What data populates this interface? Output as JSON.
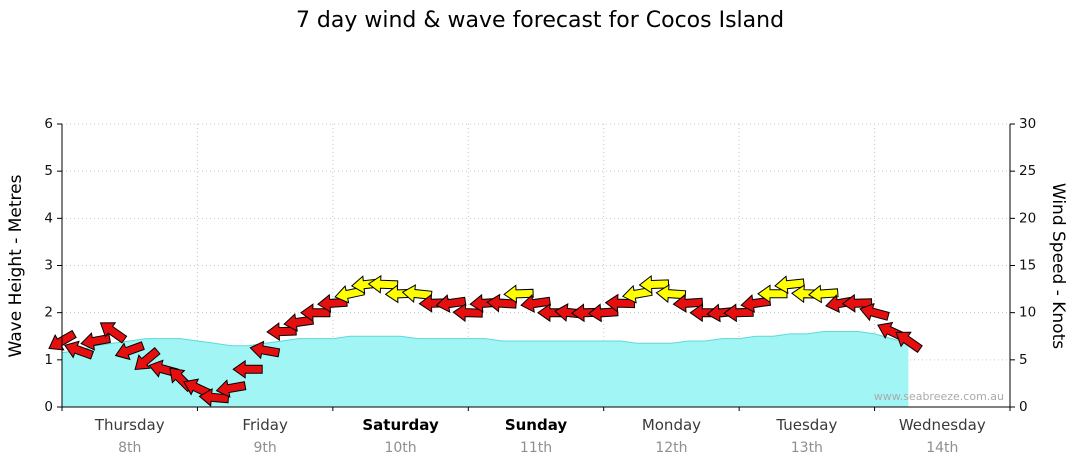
{
  "title": "7 day wind & wave forecast for Cocos Island",
  "watermark": "www.seabreeze.com.au",
  "left_axis": {
    "label": "Wave Height - Metres",
    "ticks": [
      0,
      1,
      2,
      3,
      4,
      5,
      6
    ],
    "max": 6
  },
  "right_axis": {
    "label": "Wind Speed - Knots",
    "ticks": [
      0,
      5,
      10,
      15,
      20,
      25,
      30
    ],
    "max": 30
  },
  "chart_data": {
    "type": "area",
    "subtype": "wave-height-area-with-wind-arrows",
    "total_days": 7,
    "step_hours": 3,
    "categories": [
      {
        "name": "Thursday",
        "date": "8th",
        "bold": false
      },
      {
        "name": "Friday",
        "date": "9th",
        "bold": false
      },
      {
        "name": "Saturday",
        "date": "10th",
        "bold": true
      },
      {
        "name": "Sunday",
        "date": "11th",
        "bold": true
      },
      {
        "name": "Monday",
        "date": "12th",
        "bold": false
      },
      {
        "name": "Tuesday",
        "date": "13th",
        "bold": false
      },
      {
        "name": "Wednesday",
        "date": "14th",
        "bold": false
      }
    ],
    "wave_height_m": [
      1.15,
      1.2,
      1.3,
      1.35,
      1.4,
      1.45,
      1.45,
      1.45,
      1.4,
      1.35,
      1.3,
      1.3,
      1.35,
      1.4,
      1.45,
      1.45,
      1.45,
      1.5,
      1.5,
      1.5,
      1.5,
      1.45,
      1.45,
      1.45,
      1.45,
      1.45,
      1.4,
      1.4,
      1.4,
      1.4,
      1.4,
      1.4,
      1.4,
      1.4,
      1.35,
      1.35,
      1.35,
      1.4,
      1.4,
      1.45,
      1.45,
      1.5,
      1.5,
      1.55,
      1.55,
      1.6,
      1.6,
      1.6,
      1.55,
      1.45,
      1.35
    ],
    "wind": {
      "knots": [
        7,
        6,
        7,
        8,
        6,
        5,
        4,
        3,
        2,
        1,
        2,
        4,
        6,
        8,
        9,
        10,
        11,
        12,
        13,
        13,
        12,
        12,
        11,
        11,
        10,
        11,
        11,
        12,
        11,
        10,
        10,
        10,
        10,
        11,
        12,
        13,
        12,
        11,
        10,
        10,
        10,
        11,
        12,
        13,
        12,
        12,
        11,
        11,
        10,
        8,
        7
      ],
      "dir_deg": [
        150,
        200,
        170,
        215,
        160,
        140,
        195,
        225,
        205,
        185,
        170,
        180,
        190,
        178,
        172,
        180,
        176,
        168,
        174,
        182,
        178,
        186,
        178,
        172,
        182,
        176,
        184,
        178,
        172,
        180,
        186,
        178,
        176,
        182,
        170,
        178,
        184,
        176,
        180,
        174,
        178,
        172,
        180,
        174,
        182,
        176,
        170,
        178,
        195,
        205,
        215
      ]
    },
    "colors": {
      "wave_fill": "#a2f5f5",
      "wave_edge": "#5fd8d8",
      "arrow_low": "#e60f0f",
      "arrow_high": "#ffff00",
      "arrow_outline": "#000000",
      "high_threshold_knots": 12,
      "grid": "#c8c8c8",
      "axis": "#000000"
    },
    "grid": true,
    "legend": "none"
  }
}
